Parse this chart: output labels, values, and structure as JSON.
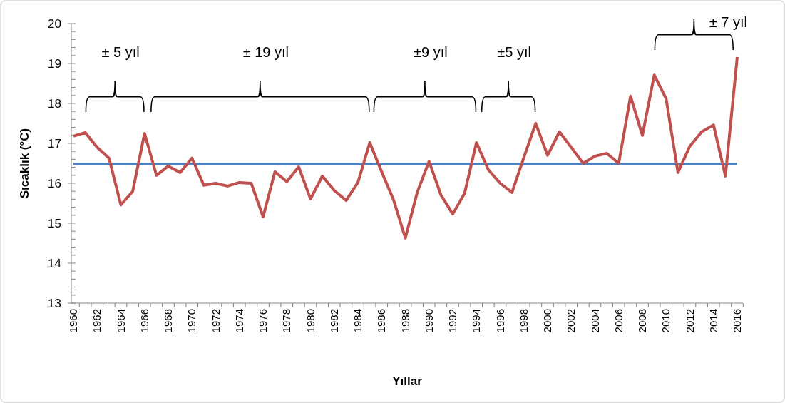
{
  "chart_data": {
    "type": "line",
    "xlabel": "Yıllar",
    "ylabel": "Sıcaklık (°C)",
    "categories": [
      "1960",
      null,
      "1962",
      null,
      "1964",
      null,
      "1966",
      null,
      "1968",
      null,
      "1970",
      null,
      "1972",
      null,
      "1974",
      null,
      "1976",
      null,
      "1978",
      null,
      "1980",
      null,
      "1982",
      null,
      "1984",
      null,
      "1986",
      null,
      "1988",
      null,
      "1990",
      null,
      "1992",
      null,
      "1994",
      null,
      "1996",
      null,
      "1998",
      null,
      "2000",
      null,
      "2002",
      null,
      "2004",
      null,
      "2006",
      null,
      "2008",
      null,
      "2010",
      null,
      "2012",
      null,
      "2014",
      null,
      "2016"
    ],
    "series": [
      {
        "color": "#c0504d",
        "values": [
          17.18,
          17.27,
          16.9,
          16.63,
          15.46,
          15.8,
          17.25,
          16.2,
          16.43,
          16.27,
          16.63,
          15.95,
          16.0,
          15.93,
          16.02,
          16.0,
          15.16,
          16.29,
          16.04,
          16.41,
          15.61,
          16.18,
          15.82,
          15.57,
          16.02,
          17.02,
          16.29,
          15.59,
          14.63,
          15.77,
          16.55,
          15.71,
          15.23,
          15.75,
          17.02,
          16.34,
          16.0,
          15.77,
          16.65,
          17.5,
          16.7,
          17.29,
          16.9,
          16.5,
          16.68,
          16.75,
          16.5,
          18.18,
          17.2,
          18.71,
          18.12,
          16.27,
          16.93,
          17.29,
          17.46,
          16.18,
          19.16
        ]
      }
    ],
    "ref_lines": [
      {
        "axis": "y",
        "value": 16.48,
        "color": "#4f81bd"
      }
    ],
    "ylim": [
      13,
      20
    ],
    "yticks": [
      13,
      {
        "value": 13.2,
        "label": null
      },
      {
        "value": 13.4,
        "label": null
      },
      {
        "value": 13.6,
        "label": null
      },
      {
        "value": 13.8,
        "label": null
      },
      14,
      {
        "value": 14.2,
        "label": null
      },
      {
        "value": 14.4,
        "label": null
      },
      {
        "value": 14.6,
        "label": null
      },
      {
        "value": 14.8,
        "label": null
      },
      15,
      {
        "value": 15.2,
        "label": null
      },
      {
        "value": 15.4,
        "label": null
      },
      {
        "value": 15.6,
        "label": null
      },
      {
        "value": 15.8,
        "label": null
      },
      16,
      {
        "value": 16.2,
        "label": null
      },
      {
        "value": 16.4,
        "label": null
      },
      {
        "value": 16.6,
        "label": null
      },
      {
        "value": 16.8,
        "label": null
      },
      17,
      {
        "value": 17.2,
        "label": null
      },
      {
        "value": 17.4,
        "label": null
      },
      {
        "value": 17.6,
        "label": null
      },
      {
        "value": 17.8,
        "label": null
      },
      18,
      {
        "value": 18.2,
        "label": null
      },
      {
        "value": 18.4,
        "label": null
      },
      {
        "value": 18.6,
        "label": null
      },
      {
        "value": 18.8,
        "label": null
      },
      19,
      {
        "value": 19.2,
        "label": null
      },
      {
        "value": 19.4,
        "label": null
      },
      {
        "value": 19.6,
        "label": null
      },
      {
        "value": 19.8,
        "label": null
      },
      20
    ],
    "grid": false,
    "marker": "none",
    "line_style": "solid",
    "annotations": [
      "± 5 yıl",
      "± 19 yıl",
      "±9 yıl",
      "±5 yıl",
      "± 7 yıl"
    ]
  }
}
